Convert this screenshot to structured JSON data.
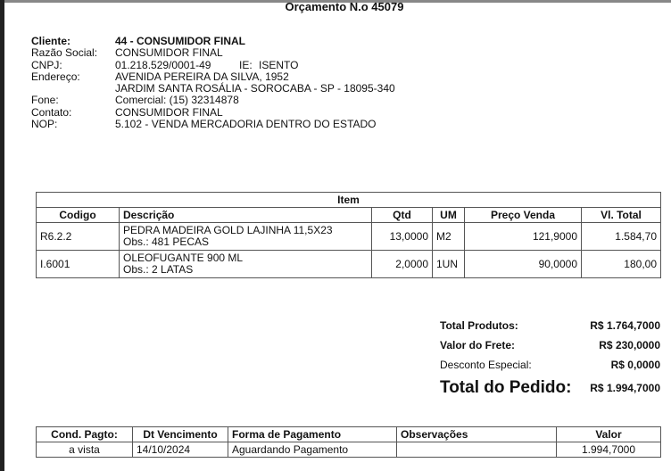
{
  "title": "Orçamento N.o 45079",
  "client": {
    "cliente_label": "Cliente:",
    "cliente": "44 - CONSUMIDOR FINAL",
    "razao_label": "Razão Social:",
    "razao": "CONSUMIDOR FINAL",
    "cnpj_label": "CNPJ:",
    "cnpj": "01.218.529/0001-49",
    "ie_label": "IE:",
    "ie": "ISENTO",
    "endereco_label": "Endereço:",
    "endereco1": "AVENIDA PEREIRA DA SILVA, 1952",
    "endereco2": "JARDIM SANTA ROSÁLIA - SOROCABA - SP - 18095-340",
    "fone_label": "Fone:",
    "fone": "Comercial: (15) 32314878",
    "contato_label": "Contato:",
    "contato": "CONSUMIDOR FINAL",
    "nop_label": "NOP:",
    "nop": "5.102 - VENDA MERCADORIA DENTRO DO ESTADO"
  },
  "items": {
    "caption": "Item",
    "headers": [
      "Codigo",
      "Descrição",
      "Qtd",
      "UM",
      "Preço Venda",
      "Vl. Total"
    ],
    "rows": [
      {
        "codigo": "R6.2.2",
        "descricao": "PEDRA MADEIRA GOLD LAJINHA 11,5X23",
        "obs": "Obs.: 481 PECAS",
        "qtd": "13,0000",
        "um": "M2",
        "preco": "121,9000",
        "total": "1.584,70"
      },
      {
        "codigo": "I.6001",
        "descricao": "OLEOFUGANTE 900 ML",
        "obs": "Obs.: 2 LATAS",
        "qtd": "2,0000",
        "um": "1UN",
        "preco": "90,0000",
        "total": "180,00"
      }
    ]
  },
  "totals": {
    "produtos_label": "Total Produtos:",
    "produtos": "R$ 1.764,7000",
    "frete_label": "Valor do Frete:",
    "frete": "R$ 230,0000",
    "desconto_label": "Desconto Especial:",
    "desconto": "R$ 0,0000",
    "pedido_label": "Total do Pedido:",
    "pedido": "R$ 1.994,7000"
  },
  "payment": {
    "headers": [
      "Cond. Pagto:",
      "Dt Vencimento",
      "Forma de Pagamento",
      "Observações",
      "Valor"
    ],
    "row": {
      "cond": "a vista",
      "venc": "14/10/2024",
      "forma": "Aguardando Pagamento",
      "obs": "",
      "valor": "1.994,7000"
    }
  }
}
